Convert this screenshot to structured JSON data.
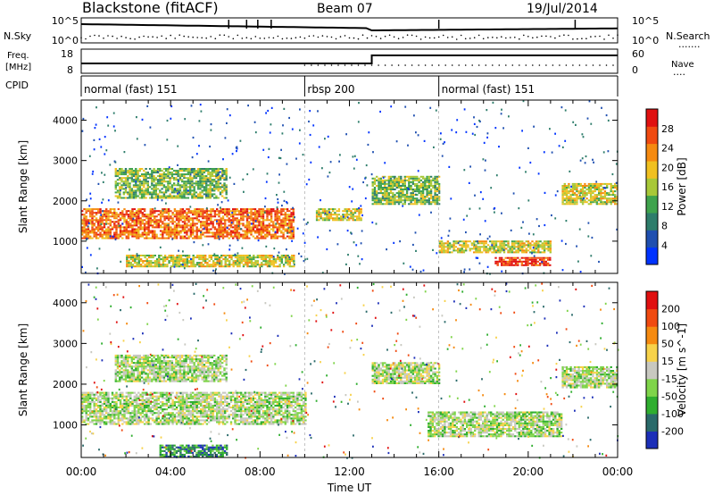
{
  "header": {
    "title": "Blackstone (fitACF)",
    "beam": "Beam 07",
    "date": "19/Jul/2014"
  },
  "nsky_panel": {
    "left_label": "N.Sky",
    "left_ticks": [
      "10^5",
      "10^0"
    ],
    "right_ticks": [
      "10^5",
      "10^0"
    ],
    "right_label": "N.Search",
    "right_legend": "......."
  },
  "freq_panel": {
    "left_label_1": "Freq.",
    "left_label_2": "[MHz]",
    "left_ticks": [
      "18",
      "8"
    ],
    "right_ticks": [
      "60",
      "0"
    ],
    "right_label": "Nave",
    "right_legend": "...."
  },
  "cpid": {
    "label": "CPID",
    "segments": [
      {
        "start_hour": 0,
        "end_hour": 10,
        "name": "normal (fast) 151"
      },
      {
        "start_hour": 10,
        "end_hour": 16,
        "name": "rbsp 200"
      },
      {
        "start_hour": 16,
        "end_hour": 24,
        "name": "normal (fast) 151"
      }
    ]
  },
  "colors": {
    "power": [
      "#0033ff",
      "#1f4fb0",
      "#2e7d6b",
      "#3fa34d",
      "#a8c838",
      "#f0c020",
      "#f58a10",
      "#f04a10",
      "#e01010"
    ],
    "velocity": [
      "#1c2fb8",
      "#2a6a6a",
      "#2fae2f",
      "#7fd44a",
      "#c8c8c0",
      "#f7d24a",
      "#f58a10",
      "#f04a10",
      "#e01010"
    ],
    "gray": "#c8c8c0"
  },
  "chart_data": [
    {
      "type": "heatmap",
      "ylabel": "Slant Range [km]",
      "y_ticks": [
        1000,
        2000,
        3000,
        4000
      ],
      "ylim": [
        200,
        4500
      ],
      "colorbar_label": "Power [dB]",
      "colorbar_ticks": [
        "4",
        "8",
        "12",
        "16",
        "20",
        "24",
        "28"
      ],
      "bands": [
        {
          "t0": 0.0,
          "t1": 9.5,
          "r0": 1050,
          "r1": 1800,
          "level": 7
        },
        {
          "t0": 1.5,
          "t1": 6.5,
          "r0": 2050,
          "r1": 2800,
          "level": 4
        },
        {
          "t0": 2.0,
          "t1": 9.5,
          "r0": 350,
          "r1": 650,
          "level": 5
        },
        {
          "t0": 10.5,
          "t1": 12.5,
          "r0": 1500,
          "r1": 1800,
          "level": 5
        },
        {
          "t0": 13.0,
          "t1": 16.0,
          "r0": 1900,
          "r1": 2600,
          "level": 4
        },
        {
          "t0": 16.0,
          "t1": 21.0,
          "r0": 700,
          "r1": 1000,
          "level": 5
        },
        {
          "t0": 18.5,
          "t1": 21.0,
          "r0": 380,
          "r1": 600,
          "level": 8
        },
        {
          "t0": 21.5,
          "t1": 24.0,
          "r0": 1900,
          "r1": 2400,
          "level": 5
        }
      ]
    },
    {
      "type": "heatmap",
      "ylabel": "Slant Range [km]",
      "y_ticks": [
        1000,
        2000,
        3000,
        4000
      ],
      "ylim": [
        200,
        4500
      ],
      "colorbar_label": "Velocity [m s^-1]",
      "colorbar_ticks": [
        "200",
        "100",
        "50",
        "15",
        "-15",
        "-50",
        "-100",
        "-200"
      ],
      "bands": [
        {
          "t0": 0.0,
          "t1": 10.0,
          "r0": 1000,
          "r1": 1800,
          "level": 4
        },
        {
          "t0": 1.5,
          "t1": 6.5,
          "r0": 2050,
          "r1": 2700,
          "level": 4
        },
        {
          "t0": 3.5,
          "t1": 6.5,
          "r0": 200,
          "r1": 500,
          "level": 2
        },
        {
          "t0": 13.0,
          "t1": 16.0,
          "r0": 2000,
          "r1": 2500,
          "level": 4
        },
        {
          "t0": 15.5,
          "t1": 21.5,
          "r0": 700,
          "r1": 1300,
          "level": 4
        },
        {
          "t0": 21.5,
          "t1": 24.0,
          "r0": 1900,
          "r1": 2400,
          "level": 4
        }
      ],
      "x_ticks": [
        "00:00",
        "04:00",
        "08:00",
        "12:00",
        "16:00",
        "20:00",
        "00:00"
      ],
      "xlabel": "Time UT",
      "xlim_hours": [
        0,
        24
      ]
    }
  ]
}
